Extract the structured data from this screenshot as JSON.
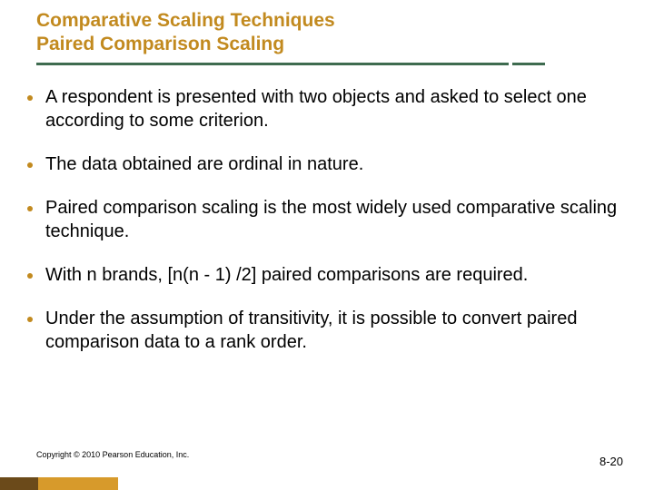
{
  "colors": {
    "title": "#c28a1f",
    "rule": "#3e6b4f",
    "bullet": "#c28a1f",
    "footer_left": "#6b4a1a",
    "footer_right": "#d79a2b"
  },
  "title": {
    "line1": "Comparative Scaling Techniques",
    "line2": "Paired Comparison Scaling"
  },
  "bullets": [
    "A respondent is presented with two objects and asked to select one according to some criterion.",
    "The data obtained are ordinal in nature.",
    "Paired comparison scaling is the most widely used comparative scaling technique.",
    "With n brands, [n(n - 1) /2] paired comparisons are required.",
    "Under the assumption of transitivity, it is possible to convert paired comparison data to a rank order."
  ],
  "copyright": "Copyright © 2010 Pearson Education, Inc.",
  "page_number": "8-20"
}
